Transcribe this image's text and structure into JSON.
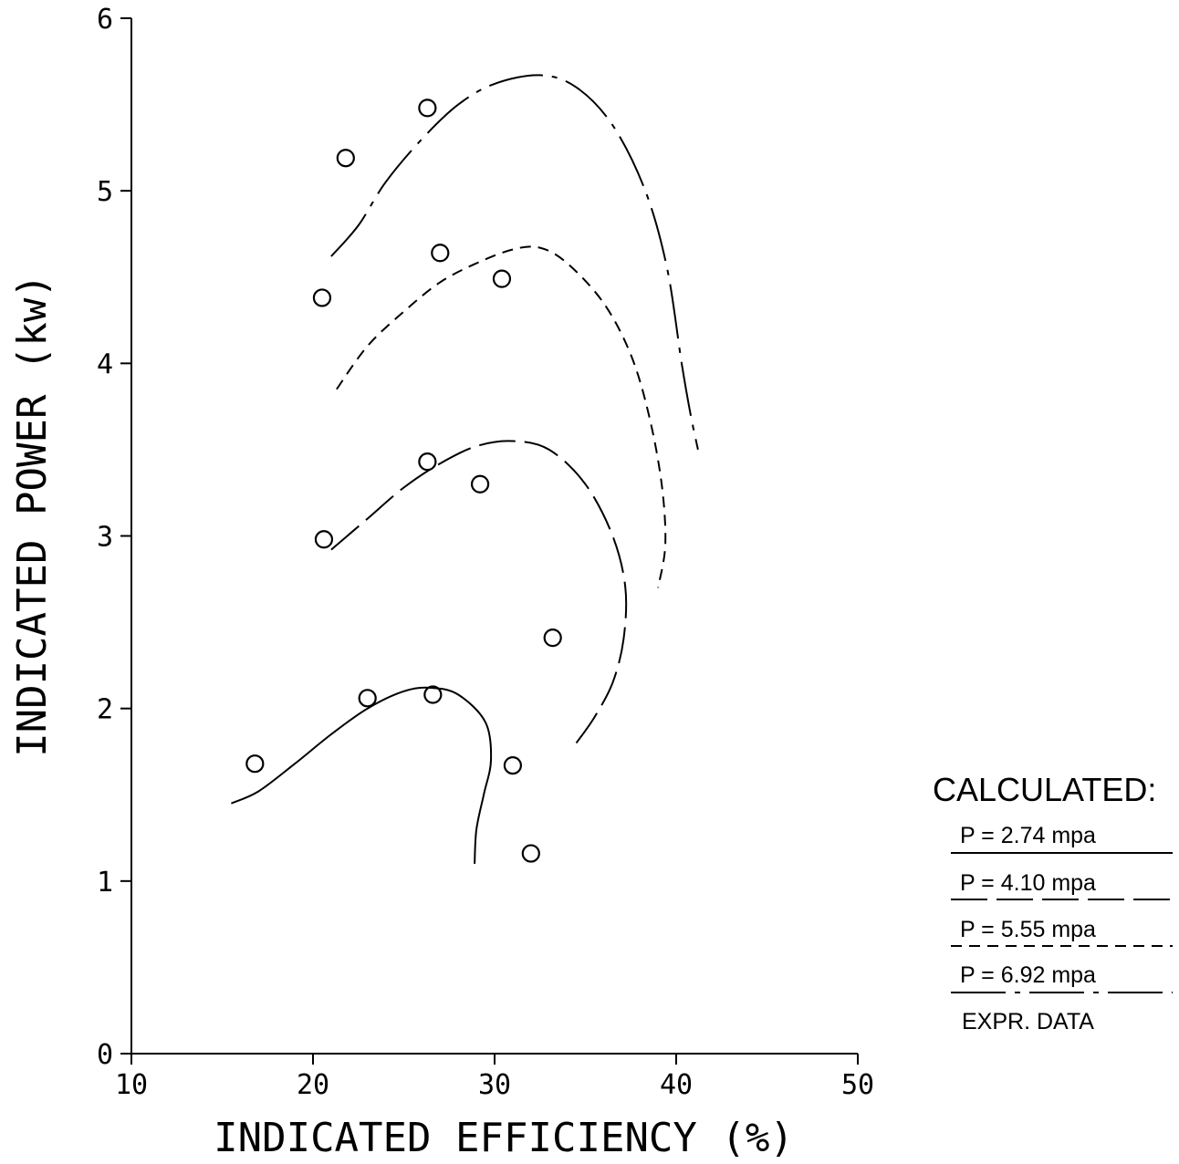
{
  "chart_data": {
    "type": "line",
    "xlabel": "INDICATED EFFICIENCY  (%)",
    "ylabel": "INDICATED POWER  (kw)",
    "xlim": [
      10,
      50
    ],
    "ylim": [
      0,
      6
    ],
    "x_ticks": [
      "10",
      "20",
      "30",
      "40",
      "50"
    ],
    "y_ticks": [
      "0",
      "1",
      "2",
      "3",
      "4",
      "5",
      "6"
    ],
    "grid": false,
    "legend": {
      "position": "right",
      "title": "CALCULATED:",
      "entries": [
        "P = 2.74 mpa",
        "P = 4.10 mpa",
        "P = 5.55 mpa",
        "P = 6.92 mpa"
      ],
      "data_label": "EXPR. DATA"
    },
    "series": [
      {
        "name": "P = 2.74 mpa",
        "style": "solid",
        "points": [
          [
            15.5,
            1.45
          ],
          [
            17,
            1.52
          ],
          [
            19,
            1.68
          ],
          [
            21,
            1.85
          ],
          [
            23,
            2.0
          ],
          [
            25,
            2.1
          ],
          [
            26.5,
            2.12
          ],
          [
            28,
            2.08
          ],
          [
            29.5,
            1.92
          ],
          [
            29.8,
            1.7
          ],
          [
            29.4,
            1.5
          ],
          [
            29,
            1.3
          ],
          [
            28.9,
            1.1
          ]
        ]
      },
      {
        "name": "P = 4.10 mpa",
        "style": "long-dash",
        "points": [
          [
            21,
            2.92
          ],
          [
            23,
            3.1
          ],
          [
            25,
            3.28
          ],
          [
            27,
            3.42
          ],
          [
            29,
            3.52
          ],
          [
            31,
            3.55
          ],
          [
            33,
            3.5
          ],
          [
            35,
            3.3
          ],
          [
            36.5,
            3.0
          ],
          [
            37.2,
            2.7
          ],
          [
            37.1,
            2.4
          ],
          [
            36.5,
            2.15
          ],
          [
            35.5,
            1.95
          ],
          [
            34.5,
            1.8
          ]
        ]
      },
      {
        "name": "P = 5.55 mpa",
        "style": "short-dash",
        "points": [
          [
            21.3,
            3.85
          ],
          [
            23,
            4.1
          ],
          [
            25,
            4.3
          ],
          [
            27,
            4.47
          ],
          [
            29,
            4.58
          ],
          [
            31,
            4.66
          ],
          [
            32.5,
            4.67
          ],
          [
            34,
            4.58
          ],
          [
            36,
            4.35
          ],
          [
            37.5,
            4.05
          ],
          [
            38.5,
            3.7
          ],
          [
            39.2,
            3.3
          ],
          [
            39.4,
            2.95
          ],
          [
            39,
            2.7
          ]
        ]
      },
      {
        "name": "P = 6.92 mpa",
        "style": "dash-dot",
        "points": [
          [
            21,
            4.62
          ],
          [
            22.5,
            4.8
          ],
          [
            24,
            5.05
          ],
          [
            26,
            5.3
          ],
          [
            28,
            5.5
          ],
          [
            30,
            5.62
          ],
          [
            32.5,
            5.67
          ],
          [
            34.5,
            5.6
          ],
          [
            36.5,
            5.38
          ],
          [
            38.3,
            5.0
          ],
          [
            39.5,
            4.55
          ],
          [
            40.3,
            4.0
          ],
          [
            40.8,
            3.7
          ],
          [
            41.2,
            3.5
          ]
        ]
      },
      {
        "name": "EXPR. DATA",
        "style": "marker",
        "points": [
          [
            26.3,
            5.48
          ],
          [
            21.8,
            5.19
          ],
          [
            27,
            4.64
          ],
          [
            30.4,
            4.49
          ],
          [
            20.5,
            4.38
          ],
          [
            26.3,
            3.43
          ],
          [
            29.2,
            3.3
          ],
          [
            20.6,
            2.98
          ],
          [
            33.2,
            2.41
          ],
          [
            23,
            2.06
          ],
          [
            26.6,
            2.08
          ],
          [
            16.8,
            1.68
          ],
          [
            31,
            1.67
          ],
          [
            32,
            1.16
          ]
        ]
      }
    ]
  }
}
